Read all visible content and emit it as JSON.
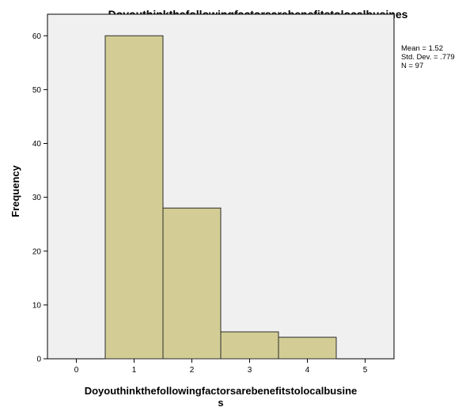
{
  "chart_data": {
    "type": "bar",
    "title": "Doyouthinkthefollowingfactorsarebenefitstolocalbusines",
    "xlabel_lines": [
      "Doyouthinkthefollowingfactorsarebenefitstolocalbusine",
      "s"
    ],
    "ylabel": "Frequency",
    "categories": [
      1,
      2,
      3,
      4
    ],
    "values": [
      60,
      28,
      5,
      4
    ],
    "bin_width": 1,
    "xlim": [
      -0.5,
      5.5
    ],
    "ylim": [
      0,
      64
    ],
    "xticks": [
      0,
      1,
      2,
      3,
      4,
      5
    ],
    "yticks": [
      0,
      10,
      20,
      30,
      40,
      50,
      60
    ],
    "grid": false,
    "legend_placement": "top-right",
    "stats": [
      "Mean = 1.52",
      "Std. Dev. = .779",
      "N = 97"
    ],
    "colors": {
      "bar_fill": "#d3cd95",
      "bar_stroke": "#2b2b2b",
      "plot_background": "#f0f0f0",
      "axis": "#000000"
    }
  }
}
